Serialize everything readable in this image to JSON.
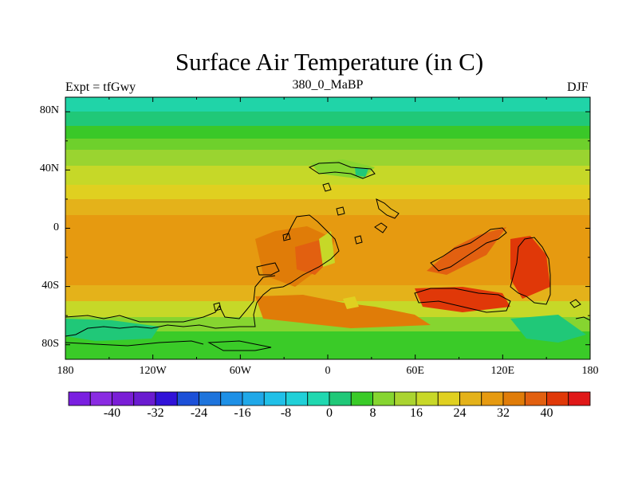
{
  "title": "Surface Air Temperature (in C)",
  "subtitle_left": "Expt = tfGwy",
  "subtitle_center": "380_0_MaBP",
  "subtitle_right": "DJF",
  "lat_ticks": [
    "80N",
    "40N",
    "0",
    "40S",
    "80S"
  ],
  "lon_ticks": [
    "180",
    "120W",
    "60W",
    "0",
    "60E",
    "120E",
    "180"
  ],
  "colorbar": {
    "tick_labels": [
      "-40",
      "-32",
      "-24",
      "-16",
      "-8",
      "0",
      "8",
      "16",
      "24",
      "32",
      "40"
    ],
    "colors": [
      "#7a1fe0",
      "#8a2be2",
      "#7a1ed6",
      "#6a1bd0",
      "#3012d8",
      "#1c50d8",
      "#1e74dc",
      "#1e90e6",
      "#20a8e8",
      "#20c0e8",
      "#20d0d8",
      "#20d8b0",
      "#20c878",
      "#3acb28",
      "#86d530",
      "#aad430",
      "#c8d828",
      "#e0d020",
      "#e4b21a",
      "#e69a10",
      "#e07c08",
      "#e26010",
      "#e03808",
      "#e01818"
    ]
  },
  "chart_data": {
    "type": "heatmap",
    "title": "Surface Air Temperature (in C)",
    "subtitle": "380_0_MaBP",
    "annotations": [
      "Expt = tfGwy",
      "DJF"
    ],
    "x_ticks": [
      "180",
      "120W",
      "60W",
      "0",
      "60E",
      "120E",
      "180"
    ],
    "y_ticks": [
      "80N",
      "40N",
      "0",
      "40S",
      "80S"
    ],
    "xlim": [
      -180,
      180
    ],
    "ylim": [
      -90,
      90
    ],
    "levels": [
      -40,
      -32,
      -24,
      -16,
      -8,
      0,
      8,
      16,
      24,
      32,
      40
    ],
    "zonal_band_temperatures": [
      {
        "lat": [
          80,
          90
        ],
        "value": 2
      },
      {
        "lat": [
          70,
          80
        ],
        "value": 6
      },
      {
        "lat": [
          60,
          70
        ],
        "value": 12
      },
      {
        "lat": [
          50,
          60
        ],
        "value": 16
      },
      {
        "lat": [
          40,
          50
        ],
        "value": 19
      },
      {
        "lat": [
          30,
          40
        ],
        "value": 22
      },
      {
        "lat": [
          20,
          30
        ],
        "value": 25
      },
      {
        "lat": [
          10,
          20
        ],
        "value": 27
      },
      {
        "lat": [
          -10,
          10
        ],
        "value": 28
      },
      {
        "lat": [
          -40,
          -10
        ],
        "value": 28
      },
      {
        "lat": [
          -50,
          -40
        ],
        "value": 26
      },
      {
        "lat": [
          -60,
          -50
        ],
        "value": 23
      },
      {
        "lat": [
          -70,
          -60
        ],
        "value": 18
      },
      {
        "lat": [
          -80,
          -70
        ],
        "value": 14
      },
      {
        "lat": [
          -90,
          -80
        ],
        "value": 10
      }
    ]
  }
}
